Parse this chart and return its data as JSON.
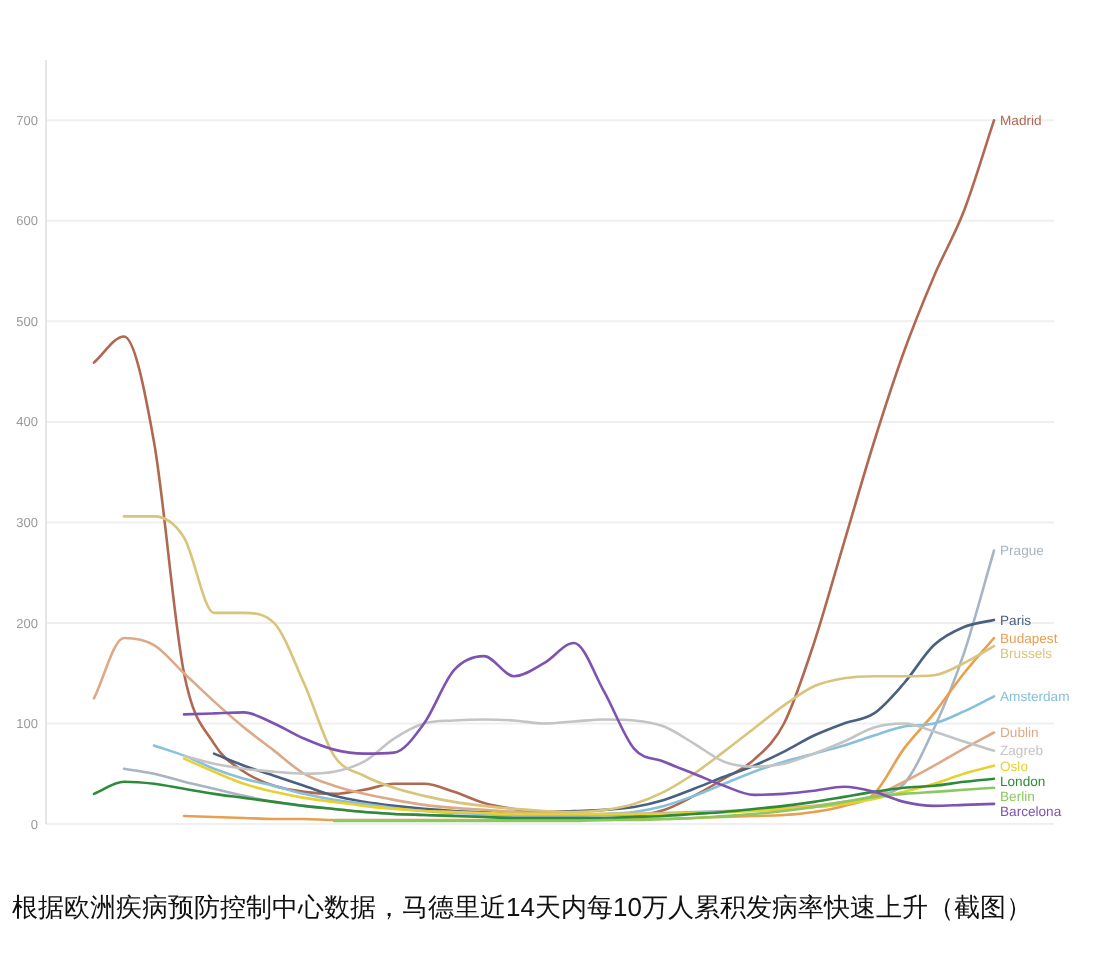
{
  "chart_data": {
    "type": "line",
    "categories": [
      null,
      null,
      null,
      null,
      null,
      null,
      null,
      null,
      null,
      null,
      null,
      null,
      null,
      null,
      null,
      null,
      null,
      null,
      null,
      null,
      null,
      null,
      null,
      null,
      null,
      null,
      null,
      null,
      null,
      null,
      null
    ],
    "series": [
      {
        "name": "Madrid",
        "color": "#b06850",
        "values": [
          459,
          485,
          380,
          150,
          80,
          52,
          38,
          32,
          30,
          34,
          40,
          40,
          32,
          21,
          15,
          12,
          10,
          9,
          9,
          14,
          28,
          45,
          64,
          100,
          180,
          280,
          380,
          470,
          545,
          610,
          700
        ]
      },
      {
        "name": "Prague",
        "color": "#a8b4c4",
        "values": [
          null,
          55,
          50,
          42,
          35,
          28,
          22,
          18,
          15,
          12,
          10,
          9,
          8,
          8,
          8,
          8,
          8,
          9,
          10,
          11,
          12,
          13,
          14,
          15,
          17,
          20,
          28,
          40,
          95,
          170,
          272
        ]
      },
      {
        "name": "Paris",
        "color": "#4a6080",
        "values": [
          null,
          null,
          null,
          null,
          70,
          58,
          48,
          38,
          28,
          22,
          18,
          15,
          13,
          12,
          12,
          12,
          13,
          14,
          17,
          24,
          35,
          47,
          58,
          72,
          88,
          100,
          110,
          140,
          178,
          196,
          203
        ]
      },
      {
        "name": "Budapest",
        "color": "#e8a050",
        "values": [
          null,
          null,
          null,
          8,
          7,
          6,
          5,
          5,
          4,
          4,
          4,
          4,
          4,
          4,
          4,
          4,
          4,
          4,
          5,
          5,
          6,
          7,
          8,
          9,
          12,
          18,
          30,
          75,
          110,
          150,
          185
        ]
      },
      {
        "name": "Brussels",
        "color": "#d8c47a",
        "values": [
          null,
          306,
          306,
          285,
          210,
          210,
          200,
          140,
          68,
          48,
          36,
          28,
          22,
          18,
          15,
          13,
          12,
          14,
          20,
          32,
          50,
          72,
          95,
          118,
          137,
          145,
          147,
          147,
          148,
          160,
          177
        ]
      },
      {
        "name": "Amsterdam",
        "color": "#88c0dc",
        "values": [
          null,
          null,
          78,
          68,
          55,
          45,
          38,
          30,
          24,
          20,
          16,
          13,
          11,
          10,
          9,
          9,
          9,
          10,
          12,
          18,
          28,
          40,
          52,
          62,
          70,
          78,
          88,
          97,
          100,
          112,
          127
        ]
      },
      {
        "name": "Dublin",
        "color": "#dcaa88",
        "values": [
          125,
          185,
          178,
          150,
          122,
          96,
          73,
          50,
          38,
          30,
          24,
          19,
          16,
          14,
          12,
          11,
          10,
          10,
          10,
          10,
          11,
          12,
          14,
          16,
          18,
          22,
          28,
          42,
          58,
          75,
          91
        ]
      },
      {
        "name": "Zagreb",
        "color": "#c4c4c4",
        "values": [
          null,
          null,
          null,
          68,
          60,
          55,
          52,
          50,
          52,
          62,
          85,
          100,
          103,
          104,
          103,
          100,
          102,
          104,
          103,
          97,
          80,
          62,
          57,
          60,
          70,
          82,
          96,
          100,
          92,
          82,
          73
        ]
      },
      {
        "name": "Oslo",
        "color": "#e8d030",
        "values": [
          null,
          null,
          null,
          65,
          52,
          40,
          32,
          26,
          22,
          18,
          15,
          13,
          12,
          11,
          10,
          10,
          10,
          10,
          10,
          10,
          11,
          12,
          13,
          15,
          17,
          20,
          25,
          32,
          40,
          50,
          58
        ]
      },
      {
        "name": "London",
        "color": "#2e8b3a",
        "values": [
          30,
          42,
          40,
          35,
          30,
          26,
          22,
          18,
          15,
          12,
          10,
          9,
          8,
          7,
          6,
          6,
          6,
          6,
          7,
          8,
          10,
          12,
          15,
          18,
          22,
          27,
          32,
          36,
          38,
          42,
          45
        ]
      },
      {
        "name": "Berlin",
        "color": "#8cc860",
        "values": [
          null,
          null,
          null,
          null,
          null,
          null,
          null,
          null,
          3,
          3,
          3,
          3,
          3,
          3,
          3,
          3,
          3,
          4,
          4,
          5,
          6,
          8,
          10,
          13,
          17,
          22,
          27,
          30,
          32,
          34,
          36
        ]
      },
      {
        "name": "Barcelona",
        "color": "#7e52b0",
        "values": [
          null,
          null,
          null,
          109,
          110,
          111,
          100,
          85,
          74,
          70,
          71,
          100,
          153,
          167,
          147,
          160,
          180,
          132,
          75,
          62,
          50,
          38,
          29,
          30,
          33,
          37,
          32,
          22,
          18,
          19,
          20
        ]
      }
    ],
    "ylim": [
      0,
      760
    ],
    "yticks": [
      0,
      100,
      200,
      300,
      400,
      500,
      600,
      700
    ],
    "grid": "y",
    "annotations": [
      "根据欧洲疾病预防控制中心数据，马德里近14天内每10万人累积发病率快速上升（截图）"
    ]
  }
}
